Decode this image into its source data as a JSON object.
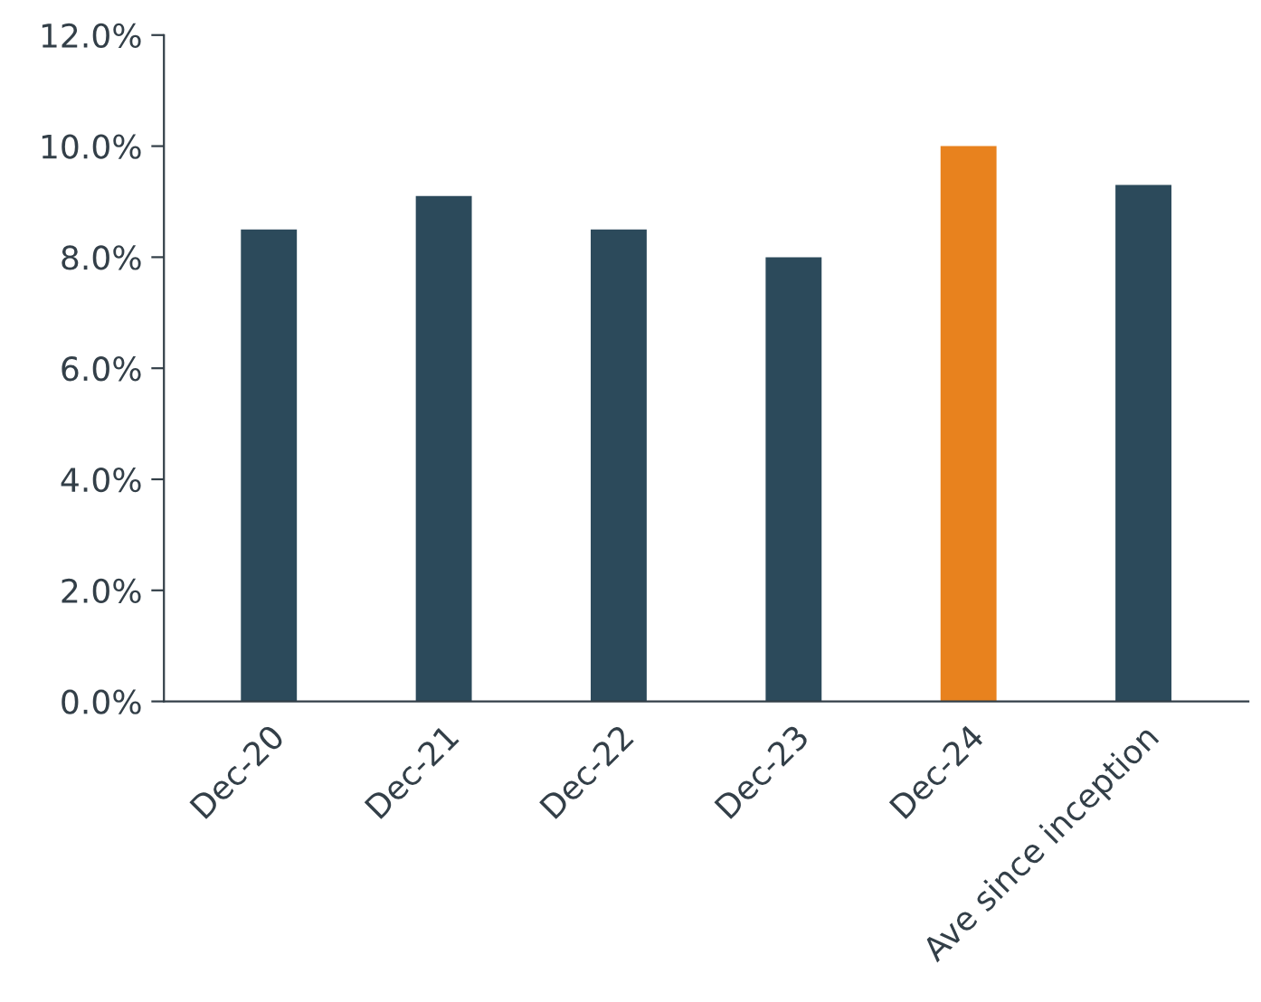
{
  "chart_data": {
    "type": "bar",
    "categories": [
      "Dec-20",
      "Dec-21",
      "Dec-22",
      "Dec-23",
      "Dec-24",
      "Ave since inception"
    ],
    "values": [
      8.5,
      9.1,
      8.5,
      8.0,
      10.0,
      9.3
    ],
    "colors": [
      "#2c4a5b",
      "#2c4a5b",
      "#2c4a5b",
      "#2c4a5b",
      "#e8821e",
      "#2c4a5b"
    ],
    "ylim": [
      0,
      12
    ],
    "yticks": [
      {
        "value": 0,
        "label": "0.0%"
      },
      {
        "value": 2,
        "label": "2.0%"
      },
      {
        "value": 4,
        "label": "4.0%"
      },
      {
        "value": 6,
        "label": "6.0%"
      },
      {
        "value": 8,
        "label": "8.0%"
      },
      {
        "value": 10,
        "label": "10.0%"
      },
      {
        "value": 12,
        "label": "12.0%"
      }
    ],
    "grid": false,
    "legend": false
  }
}
